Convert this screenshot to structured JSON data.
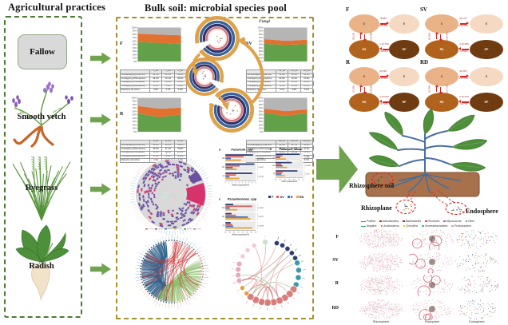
{
  "figure": {
    "left_title": "Agricultural practices",
    "middle_title": "Bulk soil:  microbial species pool",
    "fungi_label": "Fungi"
  },
  "left_panel": {
    "fallow": "Fallow",
    "smooth_vetch": "Smooth vetch",
    "ryegrass": "Ryegrass",
    "radish": "Radish"
  },
  "middle_panel": {
    "stacked": [
      {
        "label": "F",
        "table": {
          "headers": [
            "",
            "F_1B",
            "F_2B",
            "F_3B"
          ],
          "rows": [
            [
              "Nonoverlapping (Bulk soil)",
              "43.5%",
              "41.2%",
              "39.8%"
            ],
            [
              "Overlapping (Rhizosphere)",
              "28.3%",
              "29.1%",
              "30.2%"
            ],
            [
              "Overlapping (Rhizoplane)",
              "15.2%",
              "16.4%",
              "16.9%"
            ],
            [
              "Overlapping (Endosphere)",
              "8.1%",
              "8.6%",
              "9.2%"
            ],
            [
              "Shared by all niches",
              "4.9%",
              "4.7%",
              "3.9%"
            ]
          ]
        }
      },
      {
        "label": "SV",
        "table": {
          "headers": [
            "",
            "SV_1B",
            "SV_2B",
            "SV_3B"
          ],
          "rows": [
            [
              "Nonoverlapping (Bulk soil)",
              "36.8%",
              "38.5%",
              "36.1%"
            ],
            [
              "Overlapping (Rhizosphere)",
              "30.6%",
              "29.4%",
              "31.5%"
            ],
            [
              "Overlapping (Rhizoplane)",
              "16.8%",
              "16.1%",
              "16.6%"
            ],
            [
              "Overlapping (Endosphere)",
              "9.7%",
              "10.2%",
              "10.3%"
            ],
            [
              "Shared by all niches",
              "6.1%",
              "5.8%",
              "5.5%"
            ]
          ]
        }
      },
      {
        "label": "R",
        "table": {
          "headers": [
            "",
            "R_1B",
            "R_2B",
            "R_3B"
          ],
          "rows": [
            [
              "Nonoverlapping (Bulk soil)",
              "40.2%",
              "44.6%",
              "41.3%"
            ],
            [
              "Overlapping (Rhizosphere)",
              "29.5%",
              "27.2%",
              "29.8%"
            ],
            [
              "Overlapping (Rhizoplane)",
              "15.9%",
              "14.8%",
              "15.4%"
            ],
            [
              "Overlapping (Endosphere)",
              "9.0%",
              "8.4%",
              "8.8%"
            ],
            [
              "Shared by all niches",
              "5.4%",
              "5.0%",
              "4.7%"
            ]
          ]
        }
      },
      {
        "label": "RD",
        "table": {
          "headers": [
            "",
            "RD_1B",
            "RD_2B",
            "RD_3B"
          ],
          "rows": [
            [
              "Nonoverlapping (Bulk soil)",
              "38.4%",
              "41.7%",
              "38.9%"
            ],
            [
              "Overlapping (Rhizosphere)",
              "30.1%",
              "28.3%",
              "30.6%"
            ],
            [
              "Overlapping (Rhizoplane)",
              "16.2%",
              "15.5%",
              "15.9%"
            ],
            [
              "Overlapping (Endosphere)",
              "9.4%",
              "9.1%",
              "9.6%"
            ],
            [
              "Shared by all niches",
              "5.9%",
              "5.4%",
              "5.0%"
            ]
          ]
        }
      }
    ],
    "bar_legend": [
      {
        "label": "F",
        "color": "#2e3c77"
      },
      {
        "label": "SV",
        "color": "#d9635e"
      },
      {
        "label": "R",
        "color": "#3f6fb5"
      },
      {
        "label": "RD",
        "color": "#e5a23c"
      }
    ]
  },
  "right_panel": {
    "source_tracking": [
      {
        "label": "F",
        "nodes": {
          "tl": "S",
          "tr": "E",
          "bl": "RS",
          "br": "RP"
        },
        "top_above": "78.88%",
        "top_below": "U:21.12%",
        "left_outer": "58.12%",
        "left_inner": "U:41.88%",
        "bottom_above": "U:43.79%",
        "bottom_below": "56.21%"
      },
      {
        "label": "SV",
        "nodes": {
          "tl": "S",
          "tr": "E",
          "bl": "RS",
          "br": "RP"
        },
        "top_above": "83.27%",
        "top_below": "U:16.73%",
        "left_outer": "60.93%",
        "left_inner": "U:39.07%",
        "bottom_above": "U:34.38%",
        "bottom_below": "65.62%"
      },
      {
        "label": "R",
        "nodes": {
          "tl": "S",
          "tr": "E",
          "bl": "RS",
          "br": "RP"
        },
        "top_above": "83.09%",
        "top_below": "U:16.91%",
        "left_outer": "57.35%",
        "left_inner": "U:42.65%",
        "bottom_above": "U:42.09%",
        "bottom_below": "57.91%"
      },
      {
        "label": "RD",
        "nodes": {
          "tl": "S",
          "tr": "E",
          "bl": "RS",
          "br": "RP"
        },
        "top_above": "84.25%",
        "top_below": "U:15.75%",
        "left_outer": "62.79%",
        "left_inner": "U:37.21%",
        "bottom_above": "U:36.23%",
        "bottom_below": "63.77%"
      }
    ],
    "compartments": {
      "rhizosphere_soil": "Rhizosphere soil",
      "rhizoplane": "Rhizoplane",
      "endosphere": "Endosphere"
    },
    "legend": {
      "row1": [
        {
          "label": "Positive",
          "color": "#e05a5a",
          "type": "line"
        },
        {
          "label": "Actinobacteria",
          "color": "#c0392b",
          "type": "square"
        },
        {
          "label": "Bacteroidetes",
          "color": "#b03060",
          "type": "square"
        },
        {
          "label": "Firmicutes",
          "color": "#e74c3c",
          "type": "square"
        },
        {
          "label": "Myxococcota",
          "color": "#c44fd0",
          "type": "square"
        },
        {
          "label": "Other",
          "color": "#888888",
          "type": "square"
        }
      ],
      "row2": [
        {
          "label": "Negative",
          "color": "#27ae60",
          "type": "line"
        },
        {
          "label": "Acidobacteria",
          "color": "#e67e22",
          "type": "square"
        },
        {
          "label": "Chloroflexi",
          "color": "#e6c229",
          "type": "square"
        },
        {
          "label": "Gemmatimonadetes",
          "color": "#2ecc71",
          "type": "square"
        },
        {
          "label": "Proteobacteria",
          "color": "#f48fb1",
          "type": "square"
        }
      ]
    },
    "network_grid": {
      "rows": [
        "F",
        "SV",
        "R",
        "RD"
      ],
      "cols": [
        "Rhizosphere",
        "Rhizoplane",
        "Endosphere"
      ]
    }
  },
  "chart_data": [
    {
      "id": "stack-F",
      "type": "area",
      "title": "F",
      "categories": [
        "F_1B",
        "F_2B",
        "F_3B"
      ],
      "ylim": [
        0,
        100
      ],
      "series": [
        {
          "name": "green",
          "color": "#62a04a",
          "values": [
            57,
            55,
            52
          ]
        },
        {
          "name": "orange",
          "color": "#e2702f",
          "values": [
            25,
            24,
            25
          ]
        },
        {
          "name": "gray",
          "color": "#b5b5b5",
          "values": [
            18,
            21,
            23
          ]
        }
      ]
    },
    {
      "id": "stack-SV",
      "type": "area",
      "title": "SV",
      "categories": [
        "SV_1B",
        "SV_2B",
        "SV_3B"
      ],
      "ylim": [
        0,
        100
      ],
      "series": [
        {
          "name": "green",
          "color": "#62a04a",
          "values": [
            52,
            49,
            51
          ]
        },
        {
          "name": "orange",
          "color": "#e2702f",
          "values": [
            14,
            12,
            13
          ]
        },
        {
          "name": "gray",
          "color": "#b5b5b5",
          "values": [
            34,
            39,
            36
          ]
        }
      ]
    },
    {
      "id": "stack-R",
      "type": "area",
      "title": "R",
      "categories": [
        "R_1B",
        "R_2B",
        "R_3B"
      ],
      "ylim": [
        0,
        100
      ],
      "series": [
        {
          "name": "green",
          "color": "#62a04a",
          "values": [
            54,
            43,
            51
          ]
        },
        {
          "name": "orange",
          "color": "#e2702f",
          "values": [
            22,
            25,
            20
          ]
        },
        {
          "name": "gray",
          "color": "#b5b5b5",
          "values": [
            24,
            32,
            29
          ]
        }
      ]
    },
    {
      "id": "stack-RD",
      "type": "area",
      "title": "RD",
      "categories": [
        "RD_1B",
        "RD_2B",
        "RD_3B"
      ],
      "ylim": [
        0,
        100
      ],
      "series": [
        {
          "name": "green",
          "color": "#62a04a",
          "values": [
            56,
            47,
            55
          ]
        },
        {
          "name": "orange",
          "color": "#e2702f",
          "values": [
            12,
            14,
            11
          ]
        },
        {
          "name": "gray",
          "color": "#b5b5b5",
          "values": [
            32,
            39,
            34
          ]
        }
      ]
    },
    {
      "id": "bars-a",
      "type": "bar",
      "panel_label": "a",
      "title": "Fusarium_spp",
      "groups": [
        "G0",
        "G1",
        "TF"
      ],
      "xlim": [
        0,
        9
      ],
      "xticks": [
        "0",
        "1",
        "2",
        "3",
        "4",
        "5",
        "6",
        "7",
        "8",
        "9"
      ],
      "xlabel": "Mean proportion/%",
      "p_values": [
        "0.0029",
        "0.0047",
        "0.0136"
      ],
      "series": [
        {
          "name": "F",
          "color": "#2e3c77",
          "values": [
            8.2,
            8.6,
            8.0
          ]
        },
        {
          "name": "SV",
          "color": "#d9635e",
          "values": [
            5.4,
            4.2,
            3.1
          ]
        },
        {
          "name": "R",
          "color": "#3f6fb5",
          "values": [
            1.6,
            2.2,
            1.2
          ]
        },
        {
          "name": "RD",
          "color": "#e5a23c",
          "values": [
            4.6,
            3.4,
            4.1
          ]
        }
      ]
    },
    {
      "id": "bars-b",
      "type": "bar",
      "panel_label": "b",
      "title": "Fusarium_solani",
      "groups": [
        "G0",
        "G1",
        "TF"
      ],
      "xlim": [
        0,
        1.2
      ],
      "xticks": [
        "0.0",
        "0.2",
        "0.4",
        "0.6",
        "0.8",
        "1.0",
        "1.2"
      ],
      "xlabel": "Mean proportion/%",
      "p_values": [
        "0.028",
        "0.0036",
        "0.072"
      ],
      "series": [
        {
          "name": "F",
          "color": "#2e3c77",
          "values": [
            1.05,
            0.7,
            0.95
          ]
        },
        {
          "name": "SV",
          "color": "#d9635e",
          "values": [
            0.3,
            0.25,
            0.3
          ]
        },
        {
          "name": "R",
          "color": "#3f6fb5",
          "values": [
            0.2,
            0.3,
            0.25
          ]
        },
        {
          "name": "RD",
          "color": "#e5a23c",
          "values": [
            0.45,
            0.5,
            0.4
          ]
        }
      ]
    },
    {
      "id": "bars-c",
      "type": "bar",
      "panel_label": "c",
      "title": "Pseudomonas_spp",
      "groups": [
        "G0",
        "G1",
        "TF"
      ],
      "xlim": [
        0,
        3.5
      ],
      "xticks": [
        "0.0",
        "0.5",
        "1.0",
        "1.5",
        "2.0",
        "2.5",
        "3.0",
        "3.5"
      ],
      "xlabel": "Mean proportion/%",
      "p_values": [
        "0.0087",
        "0.0075",
        "0.0098"
      ],
      "series": [
        {
          "name": "F",
          "color": "#2e3c77",
          "values": [
            0.9,
            0.7,
            0.6
          ]
        },
        {
          "name": "SV",
          "color": "#d9635e",
          "values": [
            3.1,
            1.2,
            0.8
          ]
        },
        {
          "name": "R",
          "color": "#3f6fb5",
          "values": [
            0.5,
            2.6,
            0.9
          ]
        },
        {
          "name": "RD",
          "color": "#e5a23c",
          "values": [
            1.4,
            2.9,
            3.1
          ]
        }
      ]
    }
  ]
}
